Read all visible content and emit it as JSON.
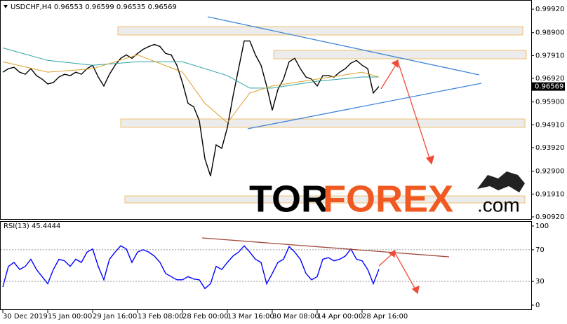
{
  "chart_data": [
    {
      "type": "line",
      "title": "USDCHF,H4  0.96553 0.96599 0.96535 0.96569",
      "categories": [
        "30 Dec 2019",
        null,
        null,
        null,
        null,
        null,
        null,
        null,
        "15 Jan 00:00",
        null,
        null,
        null,
        null,
        null,
        null,
        null,
        "29 Jan 16:00",
        null,
        null,
        null,
        null,
        null,
        null,
        null,
        "13 Feb 08:00",
        null,
        null,
        null,
        null,
        null,
        null,
        null,
        "28 Feb 00:00",
        null,
        null,
        null,
        null,
        null,
        null,
        null,
        "13 Mar 16:00",
        null,
        null,
        null,
        null,
        null,
        null,
        null,
        "30 Mar 08:00",
        null,
        null,
        null,
        null,
        null,
        null,
        null,
        "14 Apr 00:00",
        null,
        null,
        null,
        null,
        null,
        null,
        null,
        "28 Apr 16:00",
        null,
        null,
        null
      ],
      "series": [
        {
          "color": "#000000",
          "values": [
            0.9719,
            0.9734,
            0.974,
            0.9719,
            0.971,
            0.9734,
            0.9704,
            0.9689,
            0.9668,
            0.9674,
            0.9698,
            0.971,
            0.9704,
            0.9719,
            0.971,
            0.9734,
            0.9749,
            0.9698,
            0.9659,
            0.971,
            0.9749,
            0.9779,
            0.9794,
            0.9779,
            0.98,
            0.9818,
            0.983,
            0.9839,
            0.983,
            0.98,
            0.9794,
            0.9749,
            0.9674,
            0.9584,
            0.9569,
            0.9509,
            0.9344,
            0.9269,
            0.9404,
            0.9389,
            0.9479,
            0.9614,
            0.9734,
            0.9854,
            0.9854,
            0.9794,
            0.9749,
            0.9659,
            0.9554,
            0.9644,
            0.9689,
            0.9764,
            0.9779,
            0.9734,
            0.9698,
            0.9689,
            0.9659,
            0.9704,
            0.9704,
            0.9698,
            0.9719,
            0.9734,
            0.9758,
            0.977,
            0.9749,
            0.9734,
            0.9629,
            0.9657
          ]
        },
        {
          "color": "#2aa3a3",
          "x": [
            0,
            8,
            16,
            24,
            32,
            40,
            44,
            48,
            56,
            64,
            67
          ],
          "values": [
            0.9824,
            0.977,
            0.9749,
            0.9764,
            0.9764,
            0.9704,
            0.965,
            0.965,
            0.968,
            0.9698,
            0.9698
          ]
        },
        {
          "color": "#d9a12b",
          "x": [
            0,
            8,
            16,
            24,
            32,
            36,
            40,
            44,
            48,
            56,
            64,
            67
          ],
          "values": [
            0.9764,
            0.9719,
            0.9734,
            0.9794,
            0.9719,
            0.9584,
            0.95,
            0.9629,
            0.9659,
            0.9689,
            0.9719,
            0.9698
          ]
        }
      ],
      "current_price": 0.96569,
      "ylim": [
        0.90828,
        1.00286
      ],
      "yticks": [
        {
          "value": 0.9992,
          "label": "0.99920"
        },
        {
          "value": 0.989,
          "label": "0.98900"
        },
        {
          "value": 0.9791,
          "label": "0.97910"
        },
        {
          "value": 0.9692,
          "label": "0.96920"
        },
        {
          "value": 0.959,
          "label": "0.95900"
        },
        {
          "value": 0.9491,
          "label": "0.94910"
        },
        {
          "value": 0.9392,
          "label": "0.93920"
        },
        {
          "value": 0.929,
          "label": "0.92900"
        },
        {
          "value": 0.9191,
          "label": "0.91910"
        },
        {
          "value": 0.9092,
          "label": "0.90920"
        }
      ],
      "grid": false
    },
    {
      "type": "line",
      "title": "RSI(13) 45.4444",
      "series": [
        {
          "color": "#0000ff",
          "values": [
            23,
            49,
            54,
            45,
            49,
            58,
            45,
            36,
            27,
            45,
            58,
            56,
            49,
            58,
            54,
            67,
            71,
            49,
            32,
            58,
            67,
            75,
            71,
            54,
            67,
            70,
            67,
            62,
            54,
            40,
            36,
            32,
            32,
            36,
            33,
            32,
            21,
            27,
            49,
            45,
            54,
            62,
            67,
            75,
            67,
            58,
            54,
            27,
            40,
            54,
            58,
            74,
            67,
            58,
            40,
            32,
            36,
            58,
            60,
            56,
            58,
            62,
            71,
            58,
            56,
            45,
            27,
            45.4444
          ]
        }
      ],
      "ylim": [
        -5.3,
        105.3
      ],
      "yticks": [
        100,
        70,
        30,
        0
      ],
      "levels": [
        70,
        30
      ]
    }
  ],
  "logo": {
    "first": "TOR",
    "second": "FOREX",
    "suffix": ".com"
  }
}
